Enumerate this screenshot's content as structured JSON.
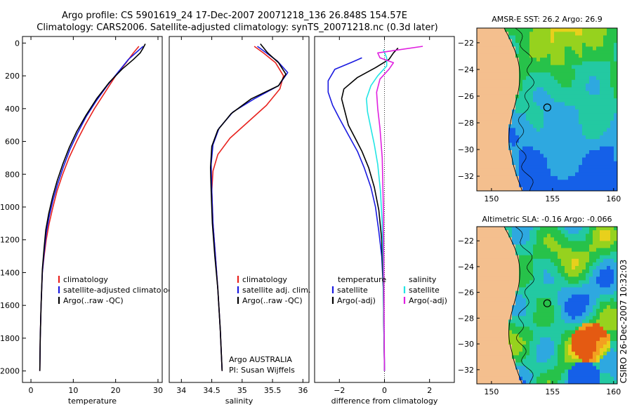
{
  "header": {
    "title_line1": "Argo profile: CS 5901619_24 17-Dec-2007 20071218_136 26.848S 154.57E",
    "title_line2": "Climatology: CARS2006. Satellite-adjusted climatology: synTS_20071218.nc (0.3d later)"
  },
  "footer": {
    "credit": "CSIRO 26-Dec-2007 10:32:03"
  },
  "colors": {
    "climatology": "#e8231f",
    "satellite": "#1a1ae0",
    "argo": "#000000",
    "cyan": "#22e5e5",
    "magenta": "#e020e0",
    "land": "#f4bf8e"
  },
  "chart_data": [
    {
      "type": "line",
      "id": "temperature",
      "xlabel": "temperature",
      "ylabel": "",
      "xlim": [
        -2,
        31
      ],
      "ylim": [
        2070,
        -40
      ],
      "xticks": [
        0,
        10,
        20,
        30
      ],
      "yticks": [
        0,
        200,
        400,
        600,
        800,
        1000,
        1200,
        1400,
        1600,
        1800,
        2000
      ],
      "legend": [
        "climatology",
        "satellite-adjusted climatology",
        "Argo(..raw -QC)"
      ],
      "series": [
        {
          "name": "climatology",
          "color": "#e8231f",
          "x": [
            25.5,
            24.2,
            22.5,
            20,
            17.5,
            15,
            12.8,
            10.8,
            9,
            7.5,
            6.2,
            5.2,
            4.3,
            3.6,
            3.1,
            2.7,
            2.4,
            2.2,
            2.1
          ],
          "y": [
            20,
            60,
            120,
            200,
            300,
            400,
            500,
            600,
            700,
            800,
            900,
            1000,
            1100,
            1200,
            1300,
            1400,
            1600,
            1800,
            2000
          ]
        },
        {
          "name": "satellite-adjusted climatology",
          "color": "#1a1ae0",
          "x": [
            26.5,
            25.2,
            23,
            20.5,
            18,
            15.5,
            13,
            11,
            9.2,
            7.6,
            6.3,
            5.2,
            4.3,
            3.6,
            3.1,
            2.7,
            2.4,
            2.2,
            2.1
          ],
          "y": [
            20,
            50,
            100,
            180,
            260,
            350,
            450,
            550,
            650,
            760,
            860,
            960,
            1060,
            1160,
            1280,
            1400,
            1600,
            1800,
            2000
          ]
        },
        {
          "name": "Argo(..raw -QC)",
          "color": "#000000",
          "x": [
            27,
            26.5,
            25.8,
            24.2,
            21.5,
            18.5,
            15.5,
            13,
            10.8,
            9,
            7.5,
            6.2,
            5.1,
            4.2,
            3.5,
            3.1,
            2.7,
            2.4,
            2.2,
            2.1
          ],
          "y": [
            5,
            30,
            60,
            100,
            160,
            240,
            340,
            440,
            540,
            640,
            740,
            840,
            940,
            1040,
            1140,
            1250,
            1380,
            1600,
            1800,
            2000
          ]
        }
      ]
    },
    {
      "type": "line",
      "id": "salinity",
      "xlabel": "salinity",
      "ylabel": "",
      "xlim": [
        33.8,
        36.1
      ],
      "ylim": [
        2070,
        -40
      ],
      "xticks": [
        34,
        34.5,
        35,
        35.5,
        36
      ],
      "yticks": [],
      "legend": [
        "climatology",
        "satellite adj. clim.",
        "Argo(..raw -QC)"
      ],
      "annotations": [
        "Argo AUSTRALIA",
        "PI: Susan Wijffels"
      ],
      "series": [
        {
          "name": "climatology",
          "color": "#e8231f",
          "x": [
            35.2,
            35.35,
            35.55,
            35.68,
            35.62,
            35.4,
            35.1,
            34.8,
            34.6,
            34.52,
            34.5,
            34.52,
            34.56,
            34.6,
            34.64,
            34.67
          ],
          "y": [
            20,
            60,
            120,
            200,
            280,
            380,
            480,
            580,
            680,
            780,
            900,
            1100,
            1300,
            1500,
            1750,
            2000
          ]
        },
        {
          "name": "satellite adj. clim.",
          "color": "#1a1ae0",
          "x": [
            35.25,
            35.4,
            35.58,
            35.75,
            35.6,
            35.2,
            34.85,
            34.62,
            34.52,
            34.49,
            34.5,
            34.52,
            34.56,
            34.6,
            34.64,
            34.67
          ],
          "y": [
            20,
            60,
            110,
            180,
            260,
            340,
            420,
            520,
            620,
            740,
            900,
            1100,
            1300,
            1500,
            1750,
            2000
          ]
        },
        {
          "name": "Argo(..raw -QC)",
          "color": "#000000",
          "x": [
            35.3,
            35.42,
            35.6,
            35.72,
            35.6,
            35.15,
            34.82,
            34.6,
            34.5,
            34.48,
            34.49,
            34.51,
            34.55,
            34.6,
            34.64,
            34.67
          ],
          "y": [
            5,
            60,
            120,
            190,
            260,
            340,
            430,
            530,
            630,
            760,
            900,
            1100,
            1300,
            1500,
            1750,
            2000
          ]
        }
      ]
    },
    {
      "type": "line",
      "id": "difference",
      "xlabel": "difference from climatology",
      "ylabel": "",
      "xlim": [
        -3.1,
        3.1
      ],
      "ylim": [
        2070,
        -40
      ],
      "xticks": [
        -2,
        0,
        2
      ],
      "yticks": [],
      "legend": [
        "temperature",
        "satellite",
        "Argo(-adj)",
        "salinity",
        "satellite",
        "Argo(-adj)"
      ],
      "series": [
        {
          "name": "temperature satellite",
          "color": "#1a1ae0",
          "x": [
            -1.0,
            -1.5,
            -2.2,
            -2.5,
            -2.5,
            -2.3,
            -2.0,
            -1.6,
            -1.2,
            -0.9,
            -0.6,
            -0.4,
            -0.25,
            -0.12,
            -0.05,
            0
          ],
          "y": [
            90,
            120,
            160,
            230,
            300,
            380,
            460,
            560,
            660,
            760,
            880,
            1000,
            1150,
            1300,
            1500,
            2000
          ]
        },
        {
          "name": "temperature Argo(-adj)",
          "color": "#000000",
          "x": [
            0.6,
            0.4,
            0.2,
            -0.4,
            -1.2,
            -1.8,
            -1.9,
            -1.75,
            -1.6,
            -1.3,
            -1.0,
            -0.7,
            -0.45,
            -0.25,
            -0.12,
            -0.05,
            0
          ],
          "y": [
            30,
            60,
            100,
            150,
            210,
            280,
            340,
            420,
            500,
            580,
            660,
            760,
            880,
            1020,
            1200,
            1500,
            2000
          ]
        },
        {
          "name": "salinity satellite",
          "color": "#22e5e5",
          "x": [
            -0.05,
            0.1,
            0.1,
            -0.3,
            -0.6,
            -0.8,
            -0.75,
            -0.6,
            -0.45,
            -0.3,
            -0.18,
            -0.1,
            -0.05,
            0
          ],
          "y": [
            40,
            90,
            140,
            200,
            260,
            340,
            420,
            520,
            620,
            740,
            900,
            1100,
            1400,
            2000
          ]
        },
        {
          "name": "salinity Argo(-adj)",
          "color": "#e020e0",
          "x": [
            1.7,
            0.7,
            -0.3,
            -0.2,
            0.4,
            0.2,
            -0.2,
            -0.35,
            -0.3,
            -0.2,
            -0.1,
            -0.05,
            0
          ],
          "y": [
            20,
            40,
            60,
            90,
            120,
            160,
            220,
            300,
            400,
            520,
            700,
            1000,
            2000
          ]
        }
      ]
    },
    {
      "type": "heatmap",
      "id": "sst_map",
      "title": "AMSR-E SST: 26.2  Argo: 26.9",
      "xlim": [
        148.8,
        160.3
      ],
      "ylim": [
        -33.1,
        -20.9
      ],
      "xticks": [
        150,
        155,
        160
      ],
      "yticks": [
        -22,
        -24,
        -26,
        -28,
        -30,
        -32
      ],
      "marker": {
        "lon": 154.57,
        "lat": -26.848
      }
    },
    {
      "type": "heatmap",
      "id": "sla_map",
      "title": "Altimetric SLA: -0.16  Argo: -0.066",
      "xlim": [
        148.8,
        160.3
      ],
      "ylim": [
        -33.1,
        -20.9
      ],
      "xticks": [
        150,
        155,
        160
      ],
      "yticks": [
        -22,
        -24,
        -26,
        -28,
        -30,
        -32
      ],
      "marker": {
        "lon": 154.57,
        "lat": -26.848
      }
    }
  ]
}
